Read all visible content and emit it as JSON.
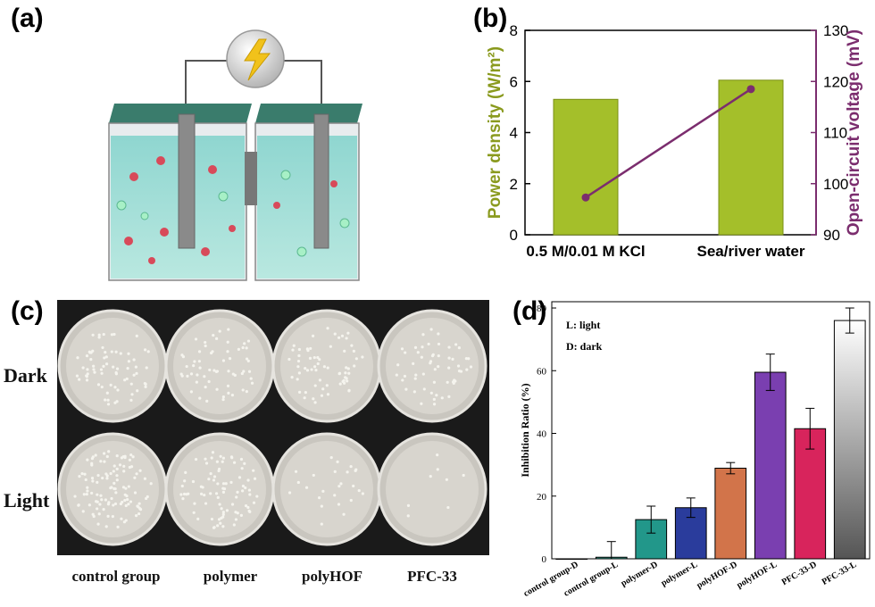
{
  "panels": {
    "a": "(a)",
    "b": "(b)",
    "c": "(c)",
    "d": "(d)"
  },
  "panel_c": {
    "rows": [
      "Dark",
      "Light"
    ],
    "columns": [
      "control group",
      "polymer",
      "polyHOF",
      "PFC-33"
    ]
  },
  "chart_data": [
    {
      "panel": "b",
      "type": "bar",
      "categories": [
        "0.5 M/0.01 M KCl",
        "Sea/river water"
      ],
      "series": [
        {
          "kind": "bar",
          "axis": "left",
          "values": [
            5.3,
            6.05
          ],
          "color": "#a4bf2a"
        },
        {
          "kind": "line",
          "axis": "right",
          "values": [
            97.3,
            118.5
          ],
          "color": "#7b2d6e"
        }
      ],
      "ylabel": "Power density (W/m²)",
      "ylim": [
        0,
        8
      ],
      "yticks": [
        "0",
        "2",
        "4",
        "6",
        "8"
      ],
      "y2label": "Open-circuit voltage (mV)",
      "y2lim": [
        90,
        130
      ],
      "y2ticks": [
        "90",
        "100",
        "110",
        "120",
        "130"
      ],
      "ylabel_color": "#8a9a1e",
      "y2label_color": "#7b2d6e"
    },
    {
      "panel": "d",
      "type": "bar",
      "categories": [
        "control group-D",
        "control group-L",
        "polymer-D",
        "polymer-L",
        "polyHOF-D",
        "polyHOF-L",
        "PFC-33-D",
        "PFC-33-L"
      ],
      "values": [
        0,
        0.5,
        12.5,
        16.3,
        28.9,
        59.5,
        41.5,
        76
      ],
      "errors": [
        0,
        5,
        4.3,
        3.1,
        1.8,
        5.8,
        6.5,
        4
      ],
      "colors": [
        "#ffffff",
        "#3aa795",
        "#22978a",
        "#2a3c9c",
        "#d2744a",
        "#7a3fb0",
        "#d8245c",
        "#9a9a9a"
      ],
      "ylabel": "Inhibition Ratio (%)",
      "ylim": [
        0,
        82
      ],
      "yticks": [
        "0",
        "20",
        "40",
        "60",
        "80"
      ],
      "legend": [
        "L: light",
        "D: dark"
      ]
    }
  ]
}
